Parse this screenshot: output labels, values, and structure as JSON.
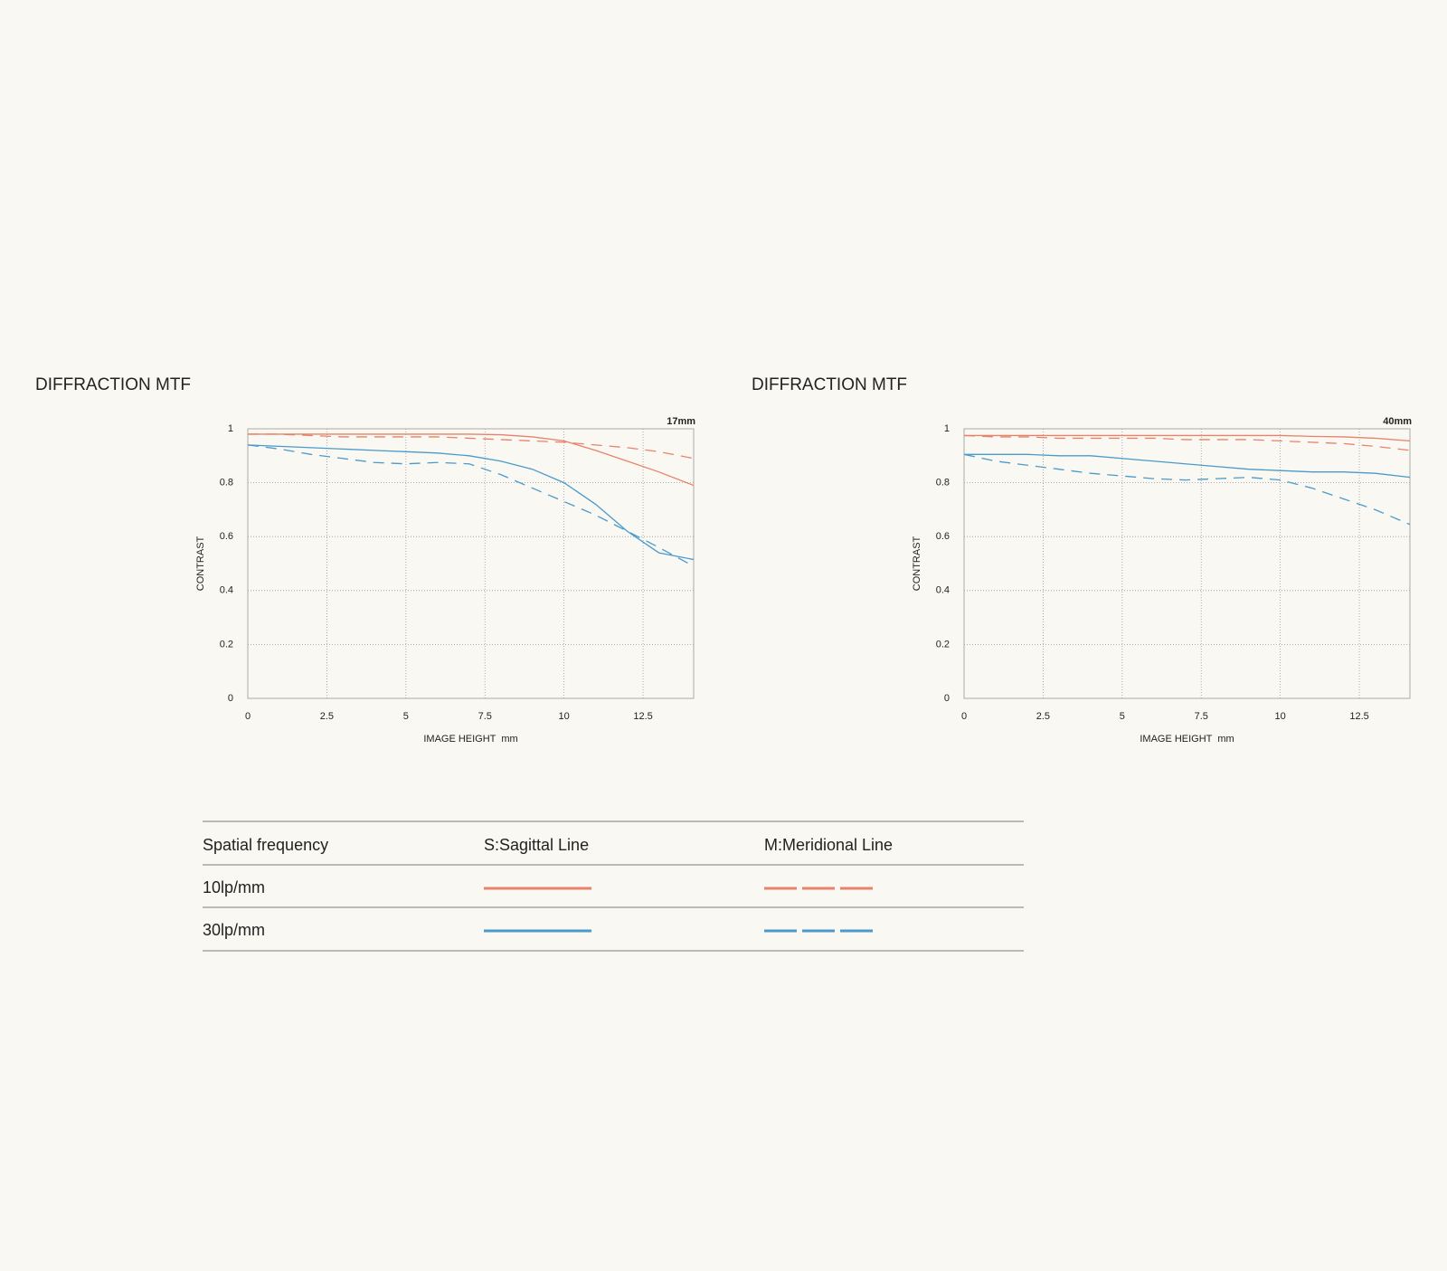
{
  "chart_data": [
    {
      "type": "line",
      "title": "DIFFRACTION MTF",
      "corner_label": "17mm",
      "xlabel": "IMAGE HEIGHT  mm",
      "ylabel": "CONTRAST",
      "x": [
        0,
        1,
        2,
        3,
        4,
        5,
        6,
        7,
        8,
        9,
        10,
        11,
        12,
        13,
        14.1
      ],
      "xlim": [
        0,
        14.1
      ],
      "xticks": [
        0,
        2.5,
        5,
        7.5,
        10,
        12.5
      ],
      "ylim": [
        0,
        1
      ],
      "yticks": [
        0,
        0.2,
        0.4,
        0.6,
        0.8,
        1
      ],
      "grid": true,
      "series": [
        {
          "color": "#e8826b",
          "dashed": false,
          "values": [
            0.98,
            0.98,
            0.98,
            0.98,
            0.98,
            0.98,
            0.98,
            0.98,
            0.978,
            0.97,
            0.955,
            0.92,
            0.88,
            0.84,
            0.79
          ]
        },
        {
          "color": "#e8826b",
          "dashed": true,
          "values": [
            0.98,
            0.98,
            0.975,
            0.97,
            0.97,
            0.97,
            0.97,
            0.965,
            0.96,
            0.955,
            0.95,
            0.94,
            0.93,
            0.915,
            0.89
          ]
        },
        {
          "color": "#4a9acb",
          "dashed": false,
          "values": [
            0.94,
            0.935,
            0.93,
            0.925,
            0.92,
            0.915,
            0.91,
            0.9,
            0.88,
            0.85,
            0.8,
            0.72,
            0.62,
            0.54,
            0.515
          ]
        },
        {
          "color": "#4a9acb",
          "dashed": true,
          "values": [
            0.94,
            0.925,
            0.905,
            0.89,
            0.875,
            0.87,
            0.875,
            0.87,
            0.83,
            0.78,
            0.73,
            0.68,
            0.62,
            0.56,
            0.49
          ]
        }
      ]
    },
    {
      "type": "line",
      "title": "DIFFRACTION MTF",
      "corner_label": "40mm",
      "xlabel": "IMAGE HEIGHT  mm",
      "ylabel": "CONTRAST",
      "x": [
        0,
        1,
        2,
        3,
        4,
        5,
        6,
        7,
        8,
        9,
        10,
        11,
        12,
        13,
        14.1
      ],
      "xlim": [
        0,
        14.1
      ],
      "xticks": [
        0,
        2.5,
        5,
        7.5,
        10,
        12.5
      ],
      "ylim": [
        0,
        1
      ],
      "yticks": [
        0,
        0.2,
        0.4,
        0.6,
        0.8,
        1
      ],
      "grid": true,
      "series": [
        {
          "color": "#e8826b",
          "dashed": false,
          "values": [
            0.975,
            0.975,
            0.975,
            0.975,
            0.975,
            0.975,
            0.975,
            0.975,
            0.975,
            0.975,
            0.975,
            0.972,
            0.97,
            0.965,
            0.955
          ]
        },
        {
          "color": "#e8826b",
          "dashed": true,
          "values": [
            0.975,
            0.97,
            0.97,
            0.965,
            0.965,
            0.965,
            0.965,
            0.96,
            0.96,
            0.96,
            0.955,
            0.95,
            0.945,
            0.935,
            0.92
          ]
        },
        {
          "color": "#4a9acb",
          "dashed": false,
          "values": [
            0.905,
            0.905,
            0.905,
            0.9,
            0.9,
            0.89,
            0.88,
            0.87,
            0.86,
            0.85,
            0.845,
            0.84,
            0.84,
            0.835,
            0.82
          ]
        },
        {
          "color": "#4a9acb",
          "dashed": true,
          "values": [
            0.905,
            0.88,
            0.865,
            0.85,
            0.835,
            0.825,
            0.815,
            0.81,
            0.815,
            0.82,
            0.81,
            0.78,
            0.74,
            0.7,
            0.645
          ]
        }
      ]
    }
  ],
  "table": {
    "header": [
      "Spatial frequency",
      "S:Sagittal Line",
      "M:Meridional Line"
    ],
    "rows": [
      [
        "10lp/mm"
      ],
      [
        "30lp/mm"
      ]
    ]
  }
}
